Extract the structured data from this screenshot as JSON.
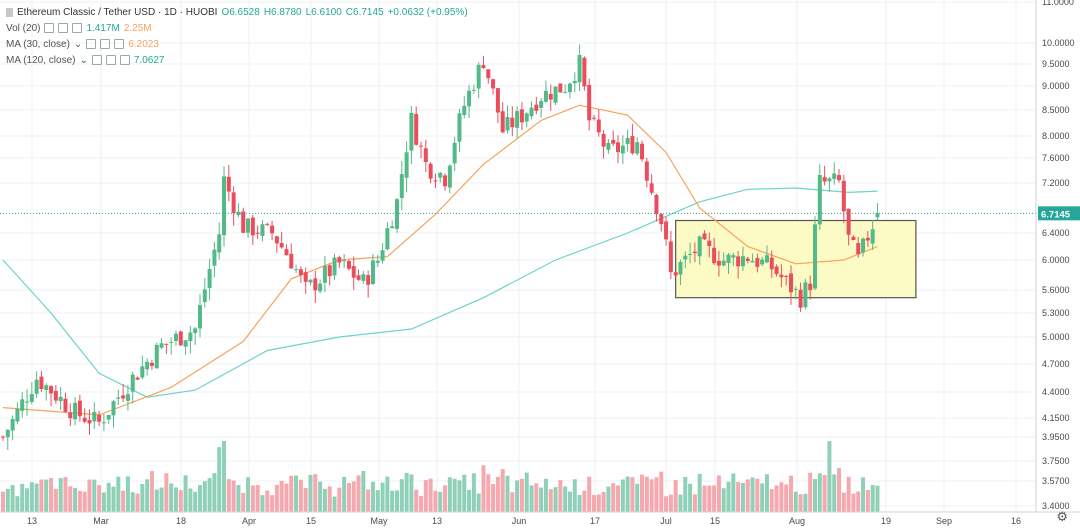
{
  "legend": {
    "title": "Ethereum Classic / Tether USD · 1D · HUOBI",
    "ohlc": {
      "o": "O6.6528",
      "h": "H6.8780",
      "l": "L6.6100",
      "c": "C6.7145",
      "chg": "+0.0632 (+0.95%)"
    },
    "vol_label": "Vol (20)",
    "vol_val1": "1.417M",
    "vol_val2": "2.25M",
    "ma30_label": "MA (30, close)",
    "ma30_val": "6.2023",
    "ma120_label": "MA (120, close)",
    "ma120_val": "7.0627"
  },
  "colors": {
    "up": "#53b987",
    "down": "#eb4d5c",
    "vol_up": "#8fd1b8",
    "vol_down": "#f5a8ae",
    "ma30": "#f7a35c",
    "ma120": "#6ed3c9",
    "box_fill": "#fdfbc5",
    "box_border": "#555555"
  },
  "icons": {
    "settings": "gear-icon"
  },
  "chart_data": {
    "type": "candlestick",
    "title": "Ethereum Classic / Tether USD",
    "last_price": "6.7145",
    "y_ticks": [
      "11.0000",
      "10.0000",
      "9.5000",
      "9.0000",
      "8.5000",
      "8.0000",
      "7.6000",
      "7.2000",
      "6.4000",
      "6.0000",
      "5.6000",
      "5.3000",
      "5.0000",
      "4.7000",
      "4.4000",
      "4.1500",
      "3.9500",
      "3.7500",
      "3.5700",
      "3.4000"
    ],
    "x_ticks": [
      "13",
      "Mar",
      "18",
      "Apr",
      "15",
      "May",
      "13",
      "Jun",
      "17",
      "Jul",
      "15",
      "Aug",
      "19",
      "Sep",
      "16"
    ],
    "anchors": [
      {
        "day": 0,
        "price": 3.95
      },
      {
        "day": 7,
        "price": 4.55
      },
      {
        "day": 15,
        "price": 4.2
      },
      {
        "day": 20,
        "price": 4.1
      },
      {
        "day": 27,
        "price": 4.55
      },
      {
        "day": 33,
        "price": 4.9
      },
      {
        "day": 40,
        "price": 5.1
      },
      {
        "day": 45,
        "price": 6.4
      },
      {
        "day": 46,
        "price": 7.25
      },
      {
        "day": 50,
        "price": 6.5
      },
      {
        "day": 56,
        "price": 6.4
      },
      {
        "day": 60,
        "price": 6.0
      },
      {
        "day": 63,
        "price": 5.6
      },
      {
        "day": 70,
        "price": 5.95
      },
      {
        "day": 75,
        "price": 5.7
      },
      {
        "day": 78,
        "price": 6.0
      },
      {
        "day": 82,
        "price": 6.9
      },
      {
        "day": 85,
        "price": 8.3
      },
      {
        "day": 88,
        "price": 7.5
      },
      {
        "day": 92,
        "price": 7.3
      },
      {
        "day": 96,
        "price": 8.6
      },
      {
        "day": 100,
        "price": 9.6
      },
      {
        "day": 104,
        "price": 8.1
      },
      {
        "day": 108,
        "price": 8.4
      },
      {
        "day": 112,
        "price": 8.8
      },
      {
        "day": 117,
        "price": 9.0
      },
      {
        "day": 120,
        "price": 9.5
      },
      {
        "day": 122,
        "price": 8.3
      },
      {
        "day": 126,
        "price": 7.7
      },
      {
        "day": 132,
        "price": 7.9
      },
      {
        "day": 135,
        "price": 7.1
      },
      {
        "day": 137,
        "price": 6.6
      },
      {
        "day": 139,
        "price": 5.8
      },
      {
        "day": 145,
        "price": 6.2
      },
      {
        "day": 150,
        "price": 6.0
      },
      {
        "day": 155,
        "price": 6.05
      },
      {
        "day": 160,
        "price": 5.9
      },
      {
        "day": 166,
        "price": 5.5
      },
      {
        "day": 168,
        "price": 5.7
      },
      {
        "day": 170,
        "price": 7.2
      },
      {
        "day": 174,
        "price": 7.2
      },
      {
        "day": 176,
        "price": 6.3
      },
      {
        "day": 178,
        "price": 6.0
      },
      {
        "day": 182,
        "price": 6.71
      }
    ],
    "ma30_points": [
      {
        "day": 0,
        "price": 4.25
      },
      {
        "day": 20,
        "price": 4.18
      },
      {
        "day": 35,
        "price": 4.45
      },
      {
        "day": 50,
        "price": 4.95
      },
      {
        "day": 60,
        "price": 5.75
      },
      {
        "day": 70,
        "price": 6.0
      },
      {
        "day": 80,
        "price": 6.05
      },
      {
        "day": 90,
        "price": 6.7
      },
      {
        "day": 100,
        "price": 7.5
      },
      {
        "day": 112,
        "price": 8.3
      },
      {
        "day": 120,
        "price": 8.6
      },
      {
        "day": 130,
        "price": 8.4
      },
      {
        "day": 138,
        "price": 7.7
      },
      {
        "day": 145,
        "price": 6.8
      },
      {
        "day": 155,
        "price": 6.2
      },
      {
        "day": 165,
        "price": 5.95
      },
      {
        "day": 175,
        "price": 6.0
      },
      {
        "day": 182,
        "price": 6.2
      }
    ],
    "ma120_points": [
      {
        "day": 0,
        "price": 6.0
      },
      {
        "day": 10,
        "price": 5.3
      },
      {
        "day": 20,
        "price": 4.6
      },
      {
        "day": 30,
        "price": 4.35
      },
      {
        "day": 40,
        "price": 4.42
      },
      {
        "day": 55,
        "price": 4.85
      },
      {
        "day": 70,
        "price": 5.0
      },
      {
        "day": 85,
        "price": 5.1
      },
      {
        "day": 100,
        "price": 5.5
      },
      {
        "day": 115,
        "price": 6.0
      },
      {
        "day": 130,
        "price": 6.4
      },
      {
        "day": 145,
        "price": 6.9
      },
      {
        "day": 155,
        "price": 7.1
      },
      {
        "day": 165,
        "price": 7.12
      },
      {
        "day": 176,
        "price": 7.05
      },
      {
        "day": 182,
        "price": 7.07
      }
    ],
    "range_box": {
      "from_day": 140,
      "to_day": 190,
      "price_top": 6.6,
      "price_bottom": 5.5
    },
    "volume_spikes": [
      {
        "day": 45,
        "factor": 2.6
      },
      {
        "day": 46,
        "factor": 3.0
      },
      {
        "day": 85,
        "factor": 1.5
      },
      {
        "day": 100,
        "factor": 2.0
      },
      {
        "day": 104,
        "factor": 1.9
      },
      {
        "day": 137,
        "factor": 1.6
      },
      {
        "day": 170,
        "factor": 1.5
      },
      {
        "day": 172,
        "factor": 2.8
      },
      {
        "day": 174,
        "factor": 1.7
      }
    ]
  }
}
